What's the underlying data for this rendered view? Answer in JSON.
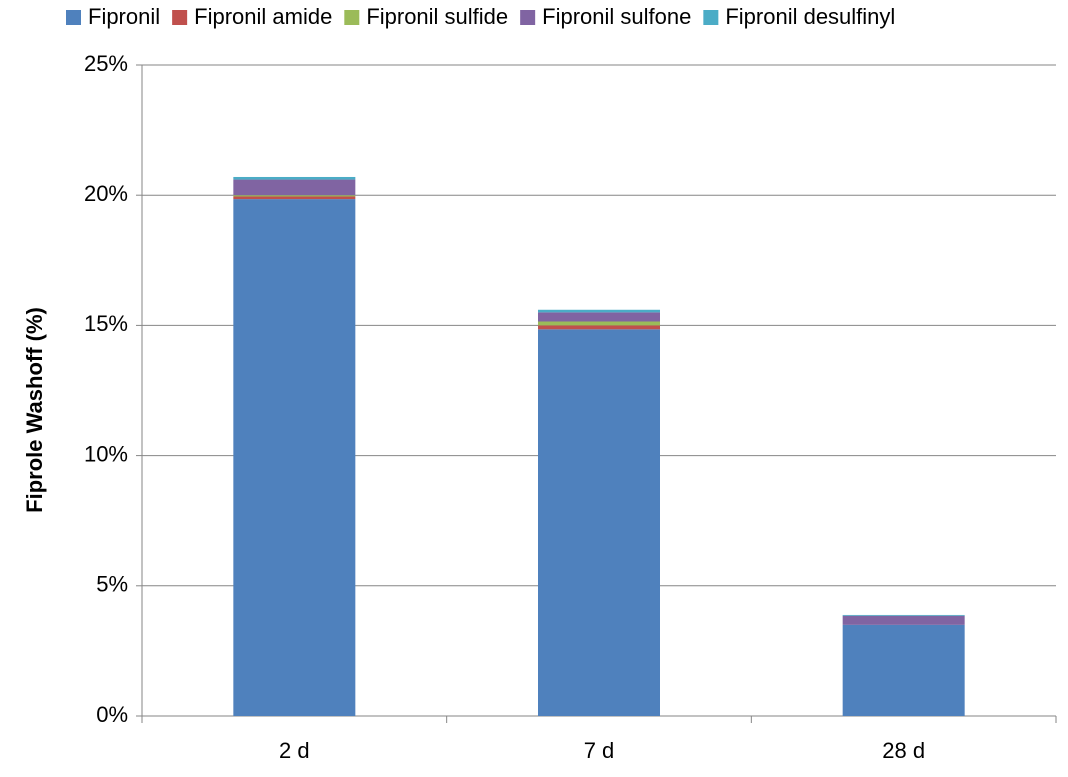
{
  "chart_data": {
    "type": "stacked_bar",
    "y_axis_label": "Fiprole Washoff (%)",
    "categories": [
      "2 d",
      "7 d",
      "28 d"
    ],
    "series": [
      {
        "name": "Fipronil",
        "color": "#4f81bd",
        "values": [
          19.85,
          14.85,
          3.5
        ]
      },
      {
        "name": "Fipronil amide",
        "color": "#c0504d",
        "values": [
          0.1,
          0.15,
          0
        ]
      },
      {
        "name": "Fipronil sulfide",
        "color": "#9bbb59",
        "values": [
          0.05,
          0.15,
          0
        ]
      },
      {
        "name": "Fipronil sulfone",
        "color": "#8064a2",
        "values": [
          0.6,
          0.35,
          0.35
        ]
      },
      {
        "name": "Fipronil desulfinyl",
        "color": "#4bacc6",
        "values": [
          0.1,
          0.1,
          0.03
        ]
      }
    ],
    "ylim": [
      0,
      25
    ],
    "yticks": [
      {
        "value": 0,
        "label": "0%"
      },
      {
        "value": 5,
        "label": "5%"
      },
      {
        "value": 10,
        "label": "10%"
      },
      {
        "value": 15,
        "label": "15%"
      },
      {
        "value": 20,
        "label": "20%"
      },
      {
        "value": 25,
        "label": "25%"
      }
    ],
    "grid": true,
    "legend": "top"
  }
}
